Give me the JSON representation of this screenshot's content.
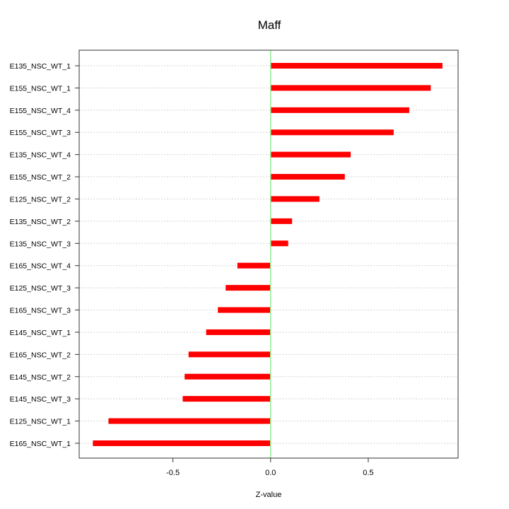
{
  "chart_data": {
    "type": "bar",
    "orientation": "horizontal",
    "title": "Maff",
    "xlabel": "Z-value",
    "ylabel": "",
    "xlim": [
      -0.98,
      0.96
    ],
    "xticks": [
      -0.5,
      0.0,
      0.5
    ],
    "xtick_labels": [
      "-0.5",
      "0.0",
      "0.5"
    ],
    "grid": "horizontal dotted",
    "reference_line": {
      "x": 0,
      "color": "#90ee90"
    },
    "bar_color": "#ff0000",
    "categories": [
      "E135_NSC_WT_1",
      "E155_NSC_WT_1",
      "E155_NSC_WT_4",
      "E155_NSC_WT_3",
      "E135_NSC_WT_4",
      "E155_NSC_WT_2",
      "E125_NSC_WT_2",
      "E135_NSC_WT_2",
      "E135_NSC_WT_3",
      "E165_NSC_WT_4",
      "E125_NSC_WT_3",
      "E165_NSC_WT_3",
      "E145_NSC_WT_1",
      "E165_NSC_WT_2",
      "E145_NSC_WT_2",
      "E145_NSC_WT_3",
      "E125_NSC_WT_1",
      "E165_NSC_WT_1"
    ],
    "values": [
      0.88,
      0.82,
      0.71,
      0.63,
      0.41,
      0.38,
      0.25,
      0.11,
      0.09,
      -0.17,
      -0.23,
      -0.27,
      -0.33,
      -0.42,
      -0.44,
      -0.45,
      -0.83,
      -0.91
    ]
  }
}
